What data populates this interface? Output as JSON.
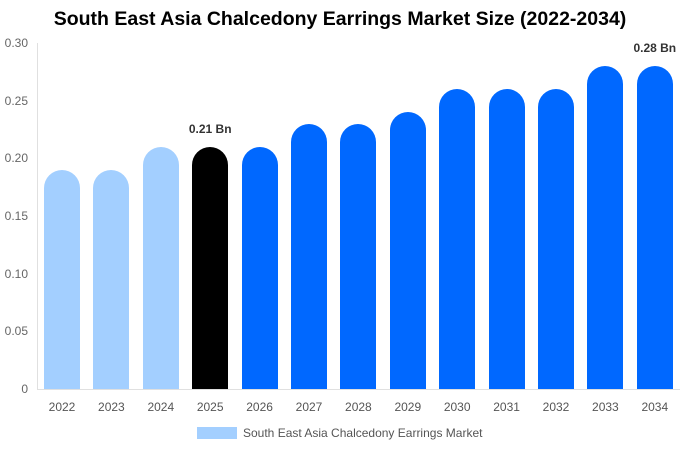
{
  "title": "South East Asia Chalcedony Earrings Market Size (2022-2034)",
  "colors": {
    "historical": "#a3cfff",
    "current": "#000000",
    "forecast": "#0068ff"
  },
  "yticks": [
    "0",
    "0.05",
    "0.10",
    "0.15",
    "0.20",
    "0.25",
    "0.30"
  ],
  "legend": {
    "label": "South East Asia Chalcedony Earrings Market"
  },
  "chart_data": {
    "type": "bar",
    "title": "South East Asia Chalcedony Earrings Market Size (2022-2034)",
    "xlabel": "",
    "ylabel": "",
    "ylim": [
      0,
      0.3
    ],
    "categories": [
      "2022",
      "2023",
      "2024",
      "2025",
      "2026",
      "2027",
      "2028",
      "2029",
      "2030",
      "2031",
      "2032",
      "2033",
      "2034"
    ],
    "series": [
      {
        "name": "South East Asia Chalcedony Earrings Market",
        "values": [
          0.19,
          0.19,
          0.21,
          0.21,
          0.21,
          0.23,
          0.23,
          0.24,
          0.26,
          0.26,
          0.26,
          0.28,
          0.28
        ]
      }
    ],
    "bar_styles": [
      "historical",
      "historical",
      "historical",
      "current",
      "forecast",
      "forecast",
      "forecast",
      "forecast",
      "forecast",
      "forecast",
      "forecast",
      "forecast",
      "forecast"
    ],
    "annotations": [
      {
        "category": "2025",
        "text": "0.21 Bn"
      },
      {
        "category": "2034",
        "text": "0.28 Bn"
      }
    ],
    "legend_position": "bottom",
    "grid": false
  }
}
